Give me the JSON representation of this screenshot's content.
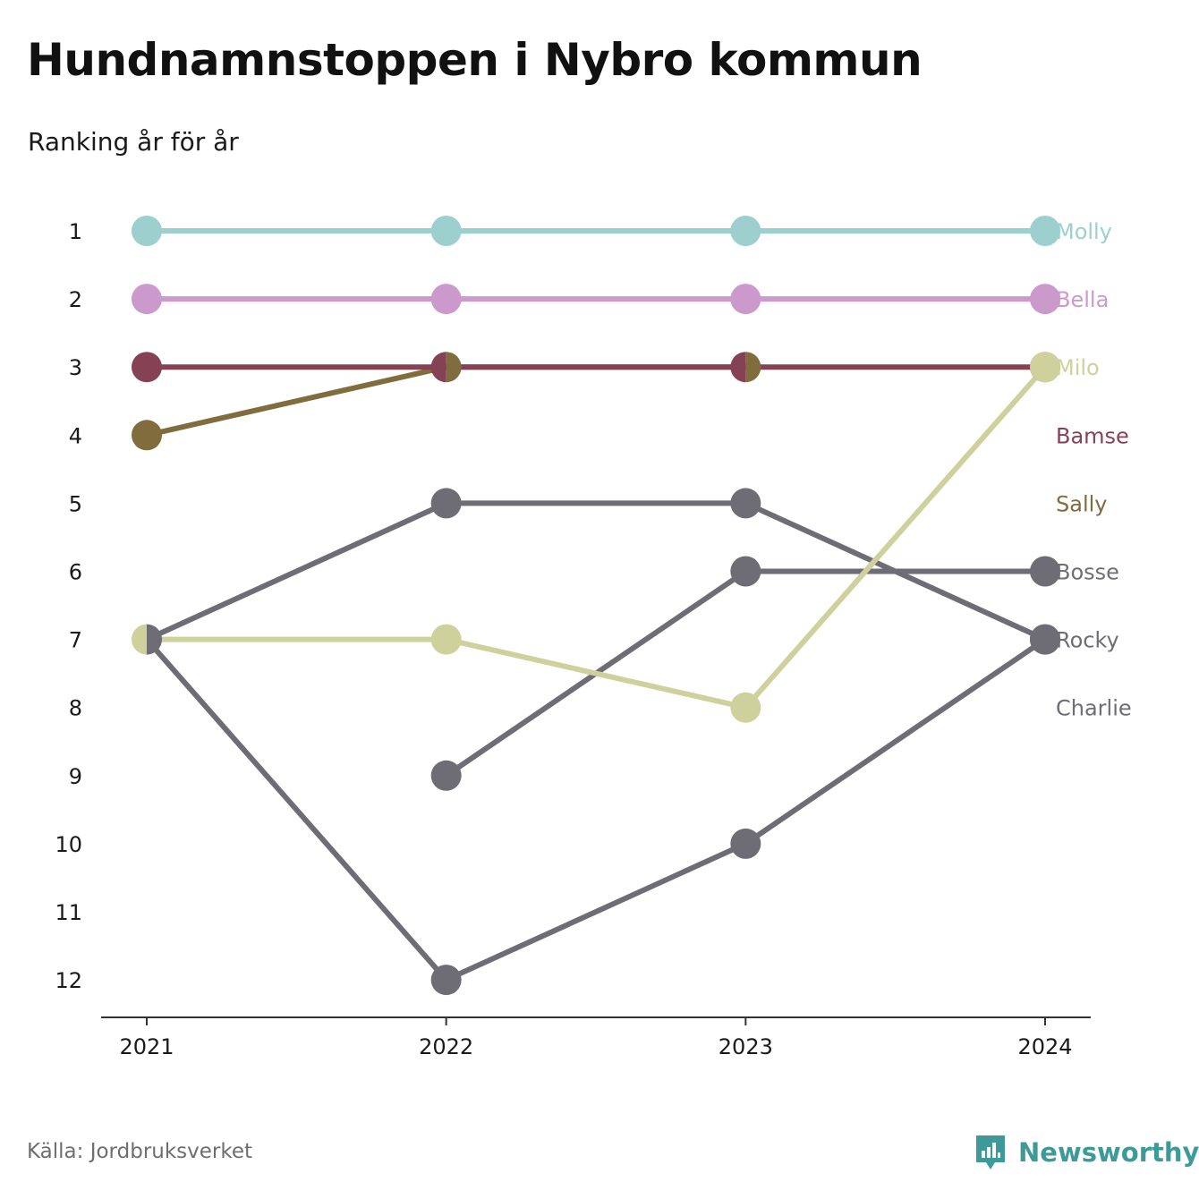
{
  "header": {
    "title": "Hundnamnstoppen i Nybro kommun",
    "subtitle": "Ranking år för år"
  },
  "footer": {
    "source": "Källa: Jordbruksverket",
    "brand": "Newsworthy",
    "brand_icon": "newsworthy-logo-icon",
    "brand_color": "#3e9a99"
  },
  "chart_data": {
    "type": "line",
    "title": "Hundnamnstoppen i Nybro kommun",
    "subtitle": "Ranking år för år",
    "x": [
      "2021",
      "2022",
      "2023",
      "2024"
    ],
    "y_ticks": [
      "1",
      "2",
      "3",
      "4",
      "5",
      "6",
      "7",
      "8",
      "9",
      "10",
      "11",
      "12"
    ],
    "ylim": [
      1,
      12
    ],
    "y_inverted": true,
    "grid": false,
    "legend": "direct labels at right",
    "series": [
      {
        "name": "Molly",
        "color": "#9dcfcf",
        "values": [
          1,
          1,
          1,
          1
        ]
      },
      {
        "name": "Bella",
        "color": "#cc99cc",
        "values": [
          2,
          2,
          2,
          2
        ]
      },
      {
        "name": "Milo",
        "color": "#cfd19c",
        "values": [
          7,
          7,
          8,
          3
        ]
      },
      {
        "name": "Bamse",
        "color": "#854255",
        "values": [
          3,
          3,
          3,
          3
        ]
      },
      {
        "name": "Sally",
        "color": "#806c3d",
        "values": [
          4,
          3,
          3,
          null
        ]
      },
      {
        "name": "Bosse",
        "color": "#6e6d75",
        "values": [
          null,
          9,
          6,
          6
        ]
      },
      {
        "name": "Rocky",
        "color": "#6e6d75",
        "values": [
          7,
          5,
          5,
          7
        ]
      },
      {
        "name": "Charlie",
        "color": "#6e6d75",
        "values": [
          7,
          12,
          10,
          7
        ]
      }
    ]
  }
}
